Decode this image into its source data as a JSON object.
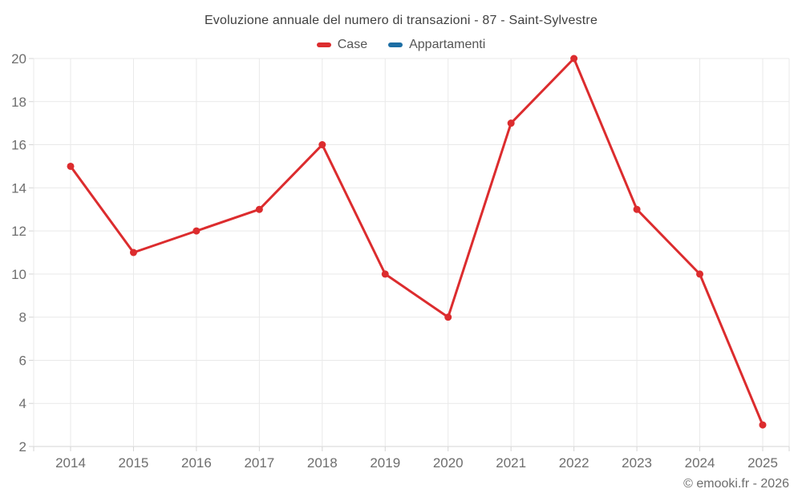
{
  "title": "Evoluzione annuale del numero di transazioni - 87 - Saint-Sylvestre",
  "legend": [
    {
      "label": "Case",
      "color": "#dc2c2e"
    },
    {
      "label": "Appartamenti",
      "color": "#1c6ea4"
    }
  ],
  "footer": {
    "copyright": "© emooki.fr - 2026"
  },
  "chart_data": {
    "type": "line",
    "categories": [
      "2014",
      "2015",
      "2016",
      "2017",
      "2018",
      "2019",
      "2020",
      "2021",
      "2022",
      "2023",
      "2024",
      "2025"
    ],
    "series": [
      {
        "name": "Case",
        "color": "#dc2c2e",
        "values": [
          15,
          11,
          12,
          13,
          16,
          10,
          8,
          17,
          20,
          13,
          10,
          3
        ]
      },
      {
        "name": "Appartamenti",
        "color": "#1c6ea4",
        "values": []
      }
    ],
    "title": "Evoluzione annuale del numero di transazioni - 87 - Saint-Sylvestre",
    "xlabel": "",
    "ylabel": "",
    "ylim": [
      2,
      20
    ],
    "ytick_step": 2,
    "grid": true,
    "legend_position": "top",
    "marker_radius": 4.5,
    "line_width": 3,
    "colors": {
      "grid": "#e9e9e9",
      "axis": "#d4d4d4",
      "tick_label": "#6e6e6e"
    }
  }
}
